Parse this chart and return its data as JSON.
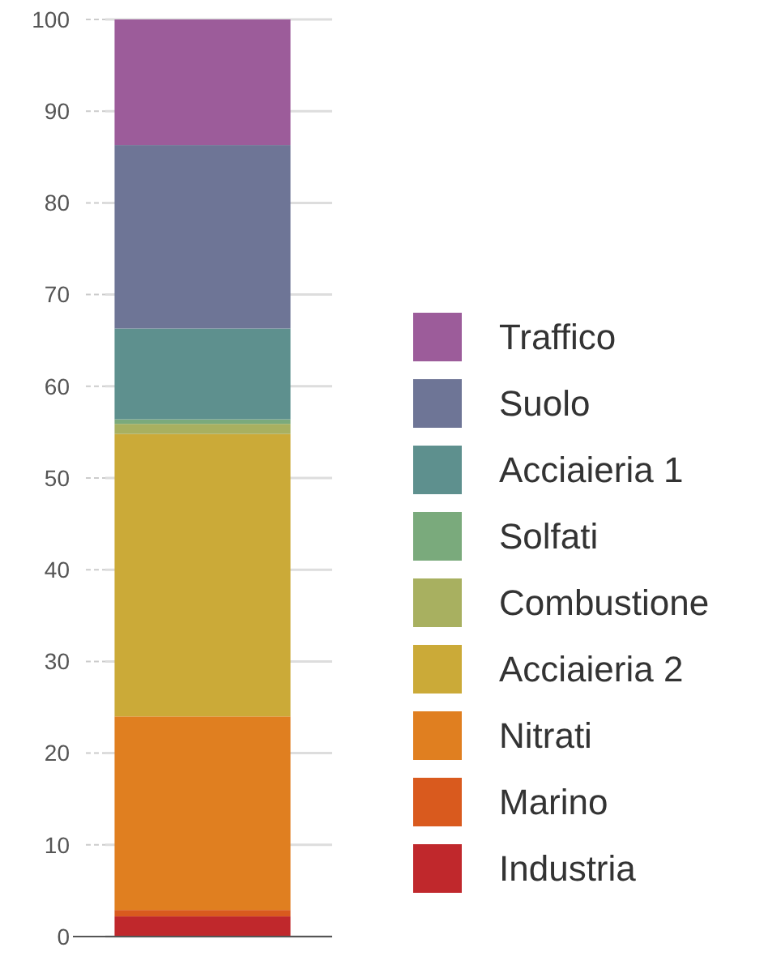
{
  "chart_data": {
    "type": "bar",
    "stacked": true,
    "categories": [
      null
    ],
    "series": [
      {
        "name": "Industria",
        "color": "#c0282c",
        "values": [
          2.2
        ]
      },
      {
        "name": "Marino",
        "color": "#d95a1e",
        "values": [
          0.7
        ]
      },
      {
        "name": "Nitrati",
        "color": "#e07f20",
        "values": [
          21.1
        ]
      },
      {
        "name": "Acciaieria 2",
        "color": "#cbaa38",
        "values": [
          30.8
        ]
      },
      {
        "name": "Combustione",
        "color": "#a8b060",
        "values": [
          1.1
        ]
      },
      {
        "name": "Solfati",
        "color": "#7aaa7c",
        "values": [
          0.5
        ]
      },
      {
        "name": "Acciaieria 1",
        "color": "#5e908e",
        "values": [
          9.9
        ]
      },
      {
        "name": "Suolo",
        "color": "#6e7596",
        "values": [
          20
        ]
      },
      {
        "name": "Traffico",
        "color": "#9c5c9a",
        "values": [
          13.7
        ]
      }
    ],
    "ylim": [
      0,
      100
    ],
    "yticks": [
      0,
      10,
      20,
      30,
      40,
      50,
      60,
      70,
      80,
      90,
      100
    ],
    "grid": "y",
    "legend": "right",
    "tick_labels": "y"
  }
}
